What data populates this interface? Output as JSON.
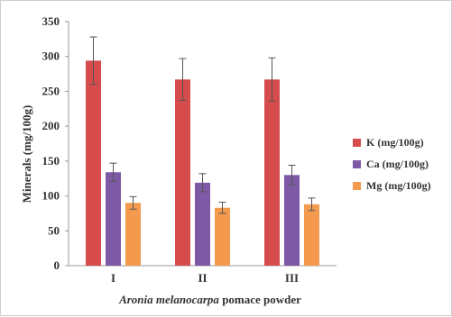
{
  "chart_data": {
    "type": "bar",
    "categories": [
      "I",
      "II",
      "III"
    ],
    "series": [
      {
        "name": "K (mg/100g)",
        "color": "#d64b4b",
        "values": [
          294,
          267,
          267
        ],
        "errors": [
          34,
          30,
          31
        ]
      },
      {
        "name": "Ca (mg/100g)",
        "color": "#7e5aa6",
        "values": [
          134,
          119,
          130
        ],
        "errors": [
          13,
          13,
          14
        ]
      },
      {
        "name": "Mg (mg/100g)",
        "color": "#f39a4f",
        "values": [
          90,
          83,
          88
        ],
        "errors": [
          9,
          8,
          9
        ]
      }
    ],
    "xlabel_italic": "Aronia melanocarpa",
    "xlabel_rest": " pomace  powder",
    "ylabel": "Minerals (mg/100g)",
    "ylim": [
      0,
      350
    ],
    "yticks": [
      0,
      50,
      100,
      150,
      200,
      250,
      300,
      350
    ],
    "grid": false,
    "legend_position": "right"
  }
}
